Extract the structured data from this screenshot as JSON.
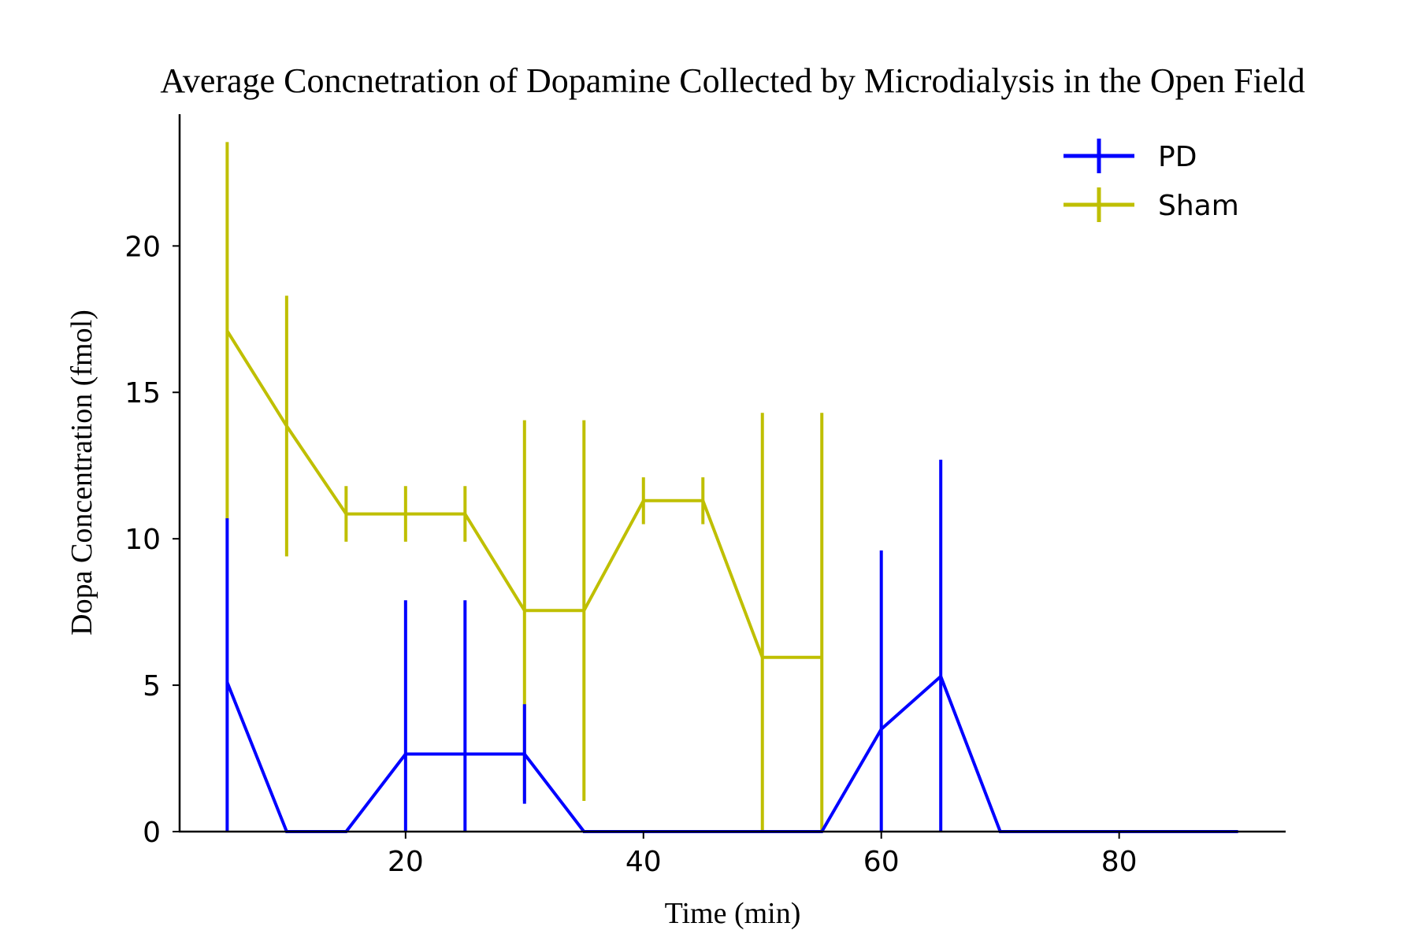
{
  "chart_data": {
    "type": "line",
    "title": "Average Concnetration of Dopamine Collected by Microdialysis in the Open Field",
    "xlabel": "Time (min)",
    "ylabel": "Dopa Concentration (fmol)",
    "xlim": [
      1,
      94
    ],
    "ylim": [
      0,
      24.5
    ],
    "xticks": [
      20,
      40,
      60,
      80
    ],
    "yticks": [
      0,
      5,
      10,
      15,
      20
    ],
    "xtick_labels": [
      "20",
      "40",
      "60",
      "80"
    ],
    "ytick_labels": [
      "0",
      "5",
      "10",
      "15",
      "20"
    ],
    "grid": false,
    "legend_position": "top-right",
    "series": [
      {
        "name": "PD",
        "color": "#0000ff",
        "x": [
          5,
          10,
          15,
          20,
          25,
          30,
          35,
          40,
          45,
          50,
          55,
          60,
          65,
          70,
          75,
          80,
          85,
          90
        ],
        "y": [
          5.1,
          0,
          0,
          2.65,
          2.65,
          2.65,
          0,
          0,
          0,
          0,
          0,
          3.5,
          5.3,
          0,
          0,
          0,
          0,
          0
        ],
        "yerr": [
          5.6,
          0,
          0,
          5.25,
          5.25,
          1.7,
          0,
          0,
          0,
          0,
          0,
          6.1,
          7.4,
          0,
          0,
          0,
          0,
          0
        ]
      },
      {
        "name": "Sham",
        "color": "#bfbf00",
        "x": [
          5,
          10,
          15,
          20,
          25,
          30,
          35,
          40,
          45,
          50,
          55
        ],
        "y": [
          17.1,
          13.85,
          10.85,
          10.85,
          10.85,
          7.55,
          7.55,
          11.3,
          11.3,
          5.95,
          5.95
        ],
        "yerr": [
          6.45,
          4.45,
          0.95,
          0.95,
          0.95,
          6.5,
          6.5,
          0.8,
          0.8,
          8.35,
          8.35
        ]
      }
    ]
  }
}
